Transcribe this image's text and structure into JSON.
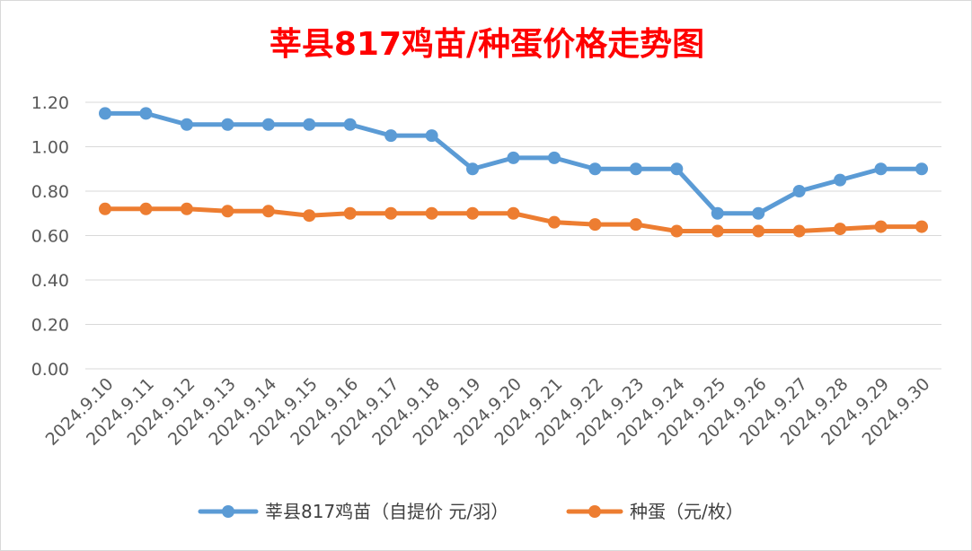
{
  "chart_data": {
    "type": "line",
    "title": "莘县817鸡苗/种蛋价格走势图",
    "title_color": "#ff0000",
    "categories": [
      "2024.9.10",
      "2024.9.11",
      "2024.9.12",
      "2024.9.13",
      "2024.9.14",
      "2024.9.15",
      "2024.9.16",
      "2024.9.17",
      "2024.9.18",
      "2024.9.19",
      "2024.9.20",
      "2024.9.21",
      "2024.9.22",
      "2024.9.23",
      "2024.9.24",
      "2024.9.25",
      "2024.9.26",
      "2024.9.27",
      "2024.9.28",
      "2024.9.29",
      "2024.9.30"
    ],
    "series": [
      {
        "name": "莘县817鸡苗（自提价 元/羽）",
        "color": "#5b9bd5",
        "values": [
          1.15,
          1.15,
          1.1,
          1.1,
          1.1,
          1.1,
          1.1,
          1.05,
          1.05,
          0.9,
          0.95,
          0.95,
          0.9,
          0.9,
          0.9,
          0.7,
          0.7,
          0.8,
          0.85,
          0.9,
          0.9
        ]
      },
      {
        "name": "种蛋（元/枚）",
        "color": "#ed7d31",
        "values": [
          0.72,
          0.72,
          0.72,
          0.71,
          0.71,
          0.69,
          0.7,
          0.7,
          0.7,
          0.7,
          0.7,
          0.66,
          0.65,
          0.65,
          0.62,
          0.62,
          0.62,
          0.62,
          0.63,
          0.64,
          0.64
        ]
      }
    ],
    "ylim": [
      0,
      1.2
    ],
    "yticks": [
      "0.00",
      "0.20",
      "0.40",
      "0.60",
      "0.80",
      "1.00",
      "1.20"
    ],
    "xlabel": "",
    "ylabel": "",
    "grid": true,
    "legend_position": "bottom"
  }
}
